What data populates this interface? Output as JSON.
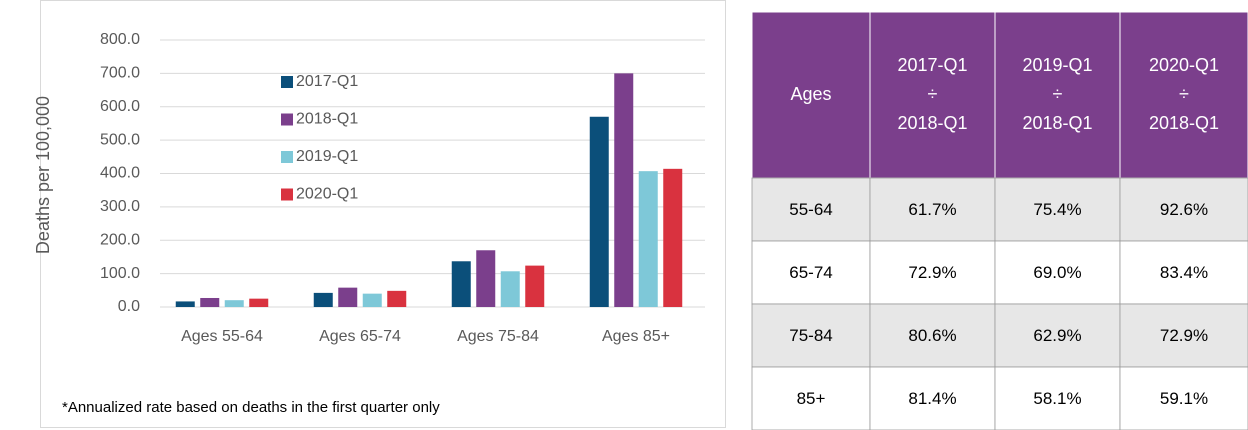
{
  "chart_data": {
    "type": "bar",
    "y_label": "Deaths per 100,000",
    "categories": [
      "Ages 55-64",
      "Ages 65-74",
      "Ages 75-84",
      "Ages 85+"
    ],
    "series": [
      {
        "name": "2017-Q1",
        "color": "#0b4f7a",
        "values": [
          16.7,
          42.3,
          137,
          570
        ]
      },
      {
        "name": "2018-Q1",
        "color": "#7b3f8c",
        "values": [
          27,
          58,
          170,
          700
        ]
      },
      {
        "name": "2019-Q1",
        "color": "#7ec8d8",
        "values": [
          20.4,
          40,
          107,
          407
        ]
      },
      {
        "name": "2020-Q1",
        "color": "#d9323f",
        "values": [
          25,
          48.4,
          124,
          414
        ]
      }
    ],
    "ylim": [
      0,
      800
    ],
    "yticks": [
      {
        "value": 0,
        "label": "0.0"
      },
      {
        "value": 100,
        "label": "100.0"
      },
      {
        "value": 200,
        "label": "200.0"
      },
      {
        "value": 300,
        "label": "300.0"
      },
      {
        "value": 400,
        "label": "400.0"
      },
      {
        "value": 500,
        "label": "500.0"
      },
      {
        "value": 600,
        "label": "600.0"
      },
      {
        "value": 700,
        "label": "700.0"
      },
      {
        "value": 800,
        "label": "800.0"
      }
    ],
    "grid": true,
    "footnote": "*Annualized rate based on deaths in the first quarter only"
  },
  "table": {
    "headers": [
      [
        "Ages"
      ],
      [
        "2017-Q1",
        "÷",
        "2018-Q1"
      ],
      [
        "2019-Q1",
        "÷",
        "2018-Q1"
      ],
      [
        "2020-Q1",
        "÷",
        "2018-Q1"
      ]
    ],
    "rows": [
      [
        "55-64",
        "61.7%",
        "75.4%",
        "92.6%"
      ],
      [
        "65-74",
        "72.9%",
        "69.0%",
        "83.4%"
      ],
      [
        "75-84",
        "80.6%",
        "62.9%",
        "72.9%"
      ],
      [
        "85+",
        "81.4%",
        "58.1%",
        "59.1%"
      ]
    ]
  }
}
